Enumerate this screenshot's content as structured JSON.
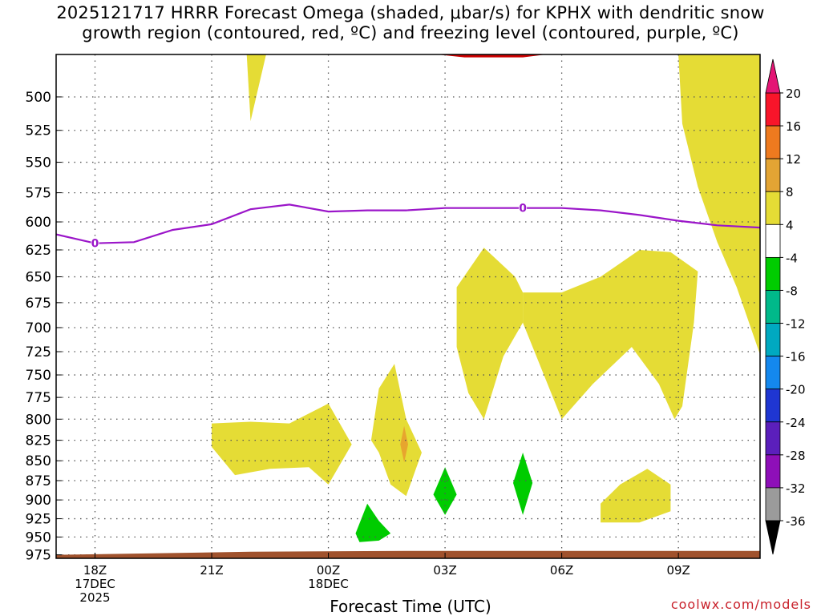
{
  "title": {
    "line1": "2025121717 HRRR Forecast Omega (shaded, μbar/s) for KPHX with dendritic snow",
    "line2": "growth region (contoured, red, ºC) and freezing level (contoured, purple, ºC)"
  },
  "credit": "coolwx.com/models",
  "chart_data": {
    "type": "area",
    "xlabel": "Forecast Time (UTC)",
    "ylabel": "",
    "x_range_hours_from_18Z": [
      -1,
      17.1
    ],
    "y_range_hpa": [
      470,
      980
    ],
    "y_ticks": [
      500,
      525,
      550,
      575,
      600,
      625,
      650,
      675,
      700,
      725,
      750,
      775,
      800,
      825,
      850,
      875,
      900,
      925,
      950,
      975
    ],
    "x_ticks": [
      {
        "h": 0,
        "lines": [
          "18Z",
          "17DEC",
          "2025"
        ]
      },
      {
        "h": 3,
        "lines": [
          "21Z"
        ]
      },
      {
        "h": 6,
        "lines": [
          "00Z",
          "18DEC"
        ]
      },
      {
        "h": 9,
        "lines": [
          "03Z"
        ]
      },
      {
        "h": 12,
        "lines": [
          "06Z"
        ]
      },
      {
        "h": 15,
        "lines": [
          "09Z"
        ]
      }
    ],
    "grid": "dotted",
    "freezing_level": {
      "label": "0",
      "color": "#9b16c9",
      "points": [
        [
          -1,
          611
        ],
        [
          0,
          619
        ],
        [
          1,
          618
        ],
        [
          2,
          607
        ],
        [
          3,
          602
        ],
        [
          4,
          589
        ],
        [
          5,
          585
        ],
        [
          6,
          591
        ],
        [
          7,
          590
        ],
        [
          8,
          590
        ],
        [
          9,
          588
        ],
        [
          10,
          588
        ],
        [
          11,
          588
        ],
        [
          12,
          588
        ],
        [
          13,
          590
        ],
        [
          14,
          594
        ],
        [
          15,
          599
        ],
        [
          16,
          603
        ],
        [
          17.1,
          605
        ]
      ],
      "label_positions": [
        [
          0,
          619
        ],
        [
          11,
          588
        ]
      ]
    },
    "omega_regions": [
      {
        "color": "#e5dc35",
        "points": [
          [
            3.9,
            470
          ],
          [
            4.4,
            470
          ],
          [
            4.0,
            518
          ]
        ]
      },
      {
        "color": "#e5dc35",
        "points": [
          [
            15.0,
            470
          ],
          [
            17.1,
            470
          ],
          [
            17.1,
            728
          ],
          [
            16.5,
            660
          ],
          [
            16.0,
            618
          ],
          [
            15.5,
            570
          ],
          [
            15.1,
            520
          ]
        ]
      },
      {
        "color": "#e5dc35",
        "points": [
          [
            9.3,
            660
          ],
          [
            10.0,
            623
          ],
          [
            10.8,
            650
          ],
          [
            11.0,
            665
          ],
          [
            11.0,
            695
          ],
          [
            10.5,
            730
          ],
          [
            10.0,
            800
          ],
          [
            9.6,
            770
          ],
          [
            9.3,
            720
          ]
        ]
      },
      {
        "color": "#e5dc35",
        "points": [
          [
            11.0,
            665
          ],
          [
            12.0,
            665
          ],
          [
            13.0,
            650
          ],
          [
            14.0,
            625
          ],
          [
            14.8,
            627
          ],
          [
            15.5,
            645
          ],
          [
            15.4,
            695
          ],
          [
            15.1,
            785
          ],
          [
            14.9,
            800
          ],
          [
            14.5,
            760
          ],
          [
            13.8,
            720
          ],
          [
            12.8,
            760
          ],
          [
            12.0,
            800
          ],
          [
            11.0,
            695
          ]
        ]
      },
      {
        "color": "#e5dc35",
        "points": [
          [
            3.0,
            805
          ],
          [
            4.0,
            803
          ],
          [
            5.0,
            805
          ],
          [
            6.0,
            782
          ],
          [
            6.6,
            830
          ],
          [
            6.0,
            880
          ],
          [
            5.5,
            858
          ],
          [
            4.5,
            860
          ],
          [
            3.6,
            868
          ],
          [
            3.0,
            833
          ]
        ]
      },
      {
        "color": "#e5dc35",
        "points": [
          [
            7.3,
            765
          ],
          [
            7.7,
            738
          ],
          [
            8.0,
            800
          ],
          [
            8.4,
            840
          ],
          [
            8.0,
            895
          ],
          [
            7.6,
            880
          ],
          [
            7.3,
            840
          ],
          [
            7.1,
            825
          ]
        ]
      },
      {
        "color": "#e5dc35",
        "points": [
          [
            13.0,
            905
          ],
          [
            13.5,
            880
          ],
          [
            14.2,
            860
          ],
          [
            14.8,
            880
          ],
          [
            14.8,
            915
          ],
          [
            14.0,
            930
          ],
          [
            13.0,
            930
          ]
        ]
      },
      {
        "color": "#e7a52e",
        "points": [
          [
            7.95,
            808
          ],
          [
            8.05,
            830
          ],
          [
            7.95,
            852
          ],
          [
            7.85,
            830
          ]
        ]
      },
      {
        "color": "#00cc00",
        "points": [
          [
            6.7,
            945
          ],
          [
            7.0,
            905
          ],
          [
            7.3,
            928
          ],
          [
            7.6,
            945
          ],
          [
            7.3,
            955
          ],
          [
            6.8,
            957
          ]
        ]
      },
      {
        "color": "#00cc00",
        "points": [
          [
            9.0,
            858
          ],
          [
            9.3,
            893
          ],
          [
            9.0,
            920
          ],
          [
            8.7,
            893
          ]
        ]
      },
      {
        "color": "#00cc00",
        "points": [
          [
            11.0,
            840
          ],
          [
            11.25,
            878
          ],
          [
            11.0,
            920
          ],
          [
            10.75,
            878
          ]
        ]
      },
      {
        "color": "#cc0000",
        "points": [
          [
            8.8,
            470
          ],
          [
            11.6,
            470
          ],
          [
            11.0,
            472
          ],
          [
            9.5,
            472
          ]
        ]
      }
    ],
    "ground": {
      "color": "#a0522d"
    },
    "colorbar": {
      "labels": [
        "20",
        "16",
        "12",
        "8",
        "4",
        "-4",
        "-8",
        "-12",
        "-16",
        "-20",
        "-24",
        "-28",
        "-32",
        "-36"
      ],
      "colors": [
        "#f8152a",
        "#ee7a1f",
        "#e3a434",
        "#e5dc35",
        "#ffffff",
        "#00cc00",
        "#00b98a",
        "#00a9c0",
        "#1488ee",
        "#1f36d2",
        "#5b1fbc",
        "#8e0fb8",
        "#9b9b9b"
      ],
      "top_color": "#e41675",
      "bottom_color": "#000000"
    }
  }
}
